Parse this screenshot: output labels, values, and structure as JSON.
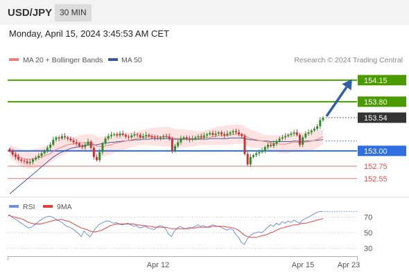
{
  "header": {
    "symbol": "USD/JPY",
    "timeframe": "30 MIN",
    "datetime": "Monday, April 15, 2024 3:45:53 AM CET"
  },
  "legend": {
    "ma20_bb": "MA 20 + Bollinger Bands",
    "ma50": "MA 50",
    "credit": "Research © 2024 Trading Central"
  },
  "rsi_legend": {
    "rsi": "RSI",
    "ma9": "9MA"
  },
  "colors": {
    "resistance": "#4a9a00",
    "current": "#333333",
    "pivot": "#2f6fe0",
    "support": "#e05050",
    "up_candle": "#2e8b2e",
    "down_candle": "#c83232",
    "bollinger_fill": "#ffd6d6",
    "ma20": "#f08080",
    "ma50": "#3a5a9a",
    "arrow": "#2f60a8",
    "rsi": "#6f8fe0",
    "rsi_ma": "#e04040"
  },
  "chart_data": [
    {
      "type": "candlestick",
      "title": "USD/JPY 30 MIN",
      "price_range": [
        152.3,
        154.35
      ],
      "x_ticks": [
        "Apr 12",
        "Apr 15",
        "Apr 23"
      ],
      "levels": [
        {
          "value": 154.15,
          "label": "154.15",
          "role": "resistance"
        },
        {
          "value": 153.8,
          "label": "153.80",
          "role": "resistance"
        },
        {
          "value": 153.54,
          "label": "153.54",
          "role": "current"
        },
        {
          "value": 153.0,
          "label": "153.00",
          "role": "pivot"
        },
        {
          "value": 152.75,
          "label": "152.75",
          "role": "support"
        },
        {
          "value": 152.55,
          "label": "152.55",
          "role": "support"
        }
      ],
      "target_arrow": {
        "from": 153.54,
        "to": 154.15
      },
      "candle_closes": [
        153.0,
        152.94,
        152.9,
        152.86,
        152.84,
        152.83,
        152.8,
        152.82,
        152.86,
        152.89,
        152.92,
        152.96,
        153.0,
        153.05,
        153.1,
        153.18,
        153.22,
        153.2,
        153.24,
        153.22,
        153.2,
        153.17,
        153.14,
        153.12,
        153.08,
        153.06,
        153.1,
        153.15,
        153.05,
        152.9,
        152.85,
        152.98,
        153.12,
        153.2,
        153.24,
        153.26,
        153.27,
        153.25,
        153.28,
        153.26,
        153.23,
        153.22,
        153.25,
        153.27,
        153.26,
        153.22,
        153.24,
        153.26,
        153.24,
        153.22,
        153.21,
        153.2,
        153.22,
        153.24,
        153.23,
        153.2,
        153.0,
        153.08,
        153.14,
        153.2,
        153.22,
        153.2,
        153.18,
        153.2,
        153.22,
        153.24,
        153.22,
        153.25,
        153.27,
        153.29,
        153.26,
        153.28,
        153.3,
        153.27,
        153.25,
        153.28,
        153.3,
        153.32,
        153.3,
        153.27,
        153.24,
        152.95,
        152.78,
        152.9,
        152.93,
        152.96,
        152.98,
        153.0,
        153.06,
        153.1,
        153.08,
        153.12,
        153.16,
        153.2,
        153.22,
        153.24,
        153.26,
        153.28,
        153.3,
        153.26,
        153.1,
        153.22,
        153.28,
        153.3,
        153.33,
        153.36,
        153.4,
        153.5,
        153.54
      ],
      "ma20_values": [
        153.0,
        152.96,
        152.94,
        152.91,
        152.89,
        152.87,
        152.86,
        152.86,
        152.87,
        152.88,
        152.89,
        152.9,
        152.92,
        152.94,
        152.96,
        152.99,
        153.02,
        153.04,
        153.06,
        153.08,
        153.1,
        153.11,
        153.11,
        153.12,
        153.13,
        153.13,
        153.13,
        153.13,
        153.13,
        153.11,
        153.08,
        153.07,
        153.07,
        153.08,
        153.09,
        153.1,
        153.12,
        153.13,
        153.14,
        153.15,
        153.16,
        153.17,
        153.18,
        153.19,
        153.2,
        153.21,
        153.22,
        153.22,
        153.23,
        153.23,
        153.23,
        153.23,
        153.23,
        153.23,
        153.23,
        153.23,
        153.21,
        153.2,
        153.2,
        153.2,
        153.2,
        153.2,
        153.2,
        153.2,
        153.2,
        153.2,
        153.21,
        153.21,
        153.22,
        153.22,
        153.23,
        153.24,
        153.25,
        153.25,
        153.25,
        153.26,
        153.26,
        153.27,
        153.27,
        153.27,
        153.27,
        153.25,
        153.22,
        153.2,
        153.19,
        153.18,
        153.17,
        153.16,
        153.15,
        153.14,
        153.13,
        153.12,
        153.12,
        153.11,
        153.11,
        153.11,
        153.12,
        153.13,
        153.14,
        153.14,
        153.14,
        153.14,
        153.14,
        153.15,
        153.16,
        153.17,
        153.19,
        153.21,
        153.23
      ],
      "ma50_values": [
        152.3,
        152.34,
        152.38,
        152.42,
        152.46,
        152.5,
        152.54,
        152.58,
        152.62,
        152.66,
        152.7,
        152.74,
        152.78,
        152.82,
        152.86,
        152.9,
        152.93,
        152.96,
        152.98,
        153.0,
        153.02,
        153.04,
        153.05,
        153.06,
        153.07,
        153.08,
        153.09,
        153.1,
        153.1,
        153.1,
        153.1,
        153.11,
        153.12,
        153.13,
        153.13,
        153.14,
        153.14,
        153.15,
        153.15,
        153.16,
        153.16,
        153.17,
        153.17,
        153.18,
        153.18,
        153.18,
        153.19,
        153.19,
        153.19,
        153.2,
        153.2,
        153.2,
        153.2,
        153.2,
        153.2,
        153.2,
        153.19,
        153.19,
        153.19,
        153.19,
        153.19,
        153.19,
        153.19,
        153.19,
        153.19,
        153.19,
        153.19,
        153.19,
        153.19,
        153.2,
        153.2,
        153.2,
        153.2,
        153.2,
        153.2,
        153.2,
        153.21,
        153.21,
        153.21,
        153.21,
        153.21,
        153.2,
        153.19,
        153.18,
        153.18,
        153.17,
        153.17,
        153.16,
        153.16,
        153.16,
        153.15,
        153.15,
        153.15,
        153.15,
        153.15,
        153.15,
        153.15,
        153.15,
        153.16,
        153.16,
        153.15,
        153.15,
        153.16,
        153.16,
        153.16,
        153.17,
        153.17,
        153.18,
        153.18
      ]
    },
    {
      "type": "line",
      "title": "RSI",
      "y_ticks": [
        70,
        50,
        30
      ],
      "ylim": [
        20,
        80
      ],
      "series": [
        {
          "name": "RSI",
          "values": [
            73,
            71,
            68,
            66,
            63,
            61,
            58,
            56,
            57,
            60,
            63,
            66,
            68,
            70,
            71,
            70,
            68,
            66,
            64,
            61,
            58,
            57,
            55,
            52,
            49,
            45,
            52,
            48,
            45,
            50,
            56,
            60,
            62,
            64,
            65,
            64,
            62,
            63,
            61,
            60,
            61,
            62,
            60,
            58,
            59,
            56,
            57,
            58,
            56,
            55,
            54,
            57,
            59,
            58,
            55,
            48,
            45,
            52,
            56,
            58,
            56,
            55,
            57,
            56,
            58,
            60,
            58,
            59,
            57,
            58,
            60,
            59,
            58,
            57,
            55,
            53,
            55,
            54,
            48,
            44,
            38,
            35,
            42,
            46,
            49,
            50,
            51,
            50,
            53,
            57,
            60,
            58,
            62,
            60,
            64,
            62,
            65,
            63,
            66,
            64,
            62,
            66,
            68,
            70,
            72,
            74,
            76,
            77,
            77
          ]
        },
        {
          "name": "9MA",
          "values": [
            72,
            71,
            70,
            69,
            68,
            67,
            65,
            63,
            62,
            61,
            61,
            61,
            62,
            63,
            64,
            65,
            66,
            66,
            67,
            66,
            65,
            64,
            62,
            60,
            58,
            56,
            55,
            54,
            52,
            51,
            51,
            52,
            53,
            55,
            57,
            59,
            60,
            61,
            61,
            61,
            61,
            61,
            61,
            61,
            60,
            60,
            59,
            59,
            58,
            58,
            57,
            57,
            57,
            57,
            57,
            56,
            55,
            55,
            55,
            55,
            55,
            55,
            55,
            56,
            56,
            57,
            57,
            57,
            57,
            57,
            58,
            58,
            58,
            58,
            58,
            57,
            57,
            56,
            55,
            53,
            50,
            47,
            45,
            44,
            44,
            44,
            45,
            46,
            47,
            48,
            50,
            51,
            53,
            55,
            56,
            57,
            58,
            59,
            60,
            60,
            61,
            62,
            62,
            63,
            64,
            65,
            66,
            67,
            68
          ]
        }
      ]
    }
  ]
}
